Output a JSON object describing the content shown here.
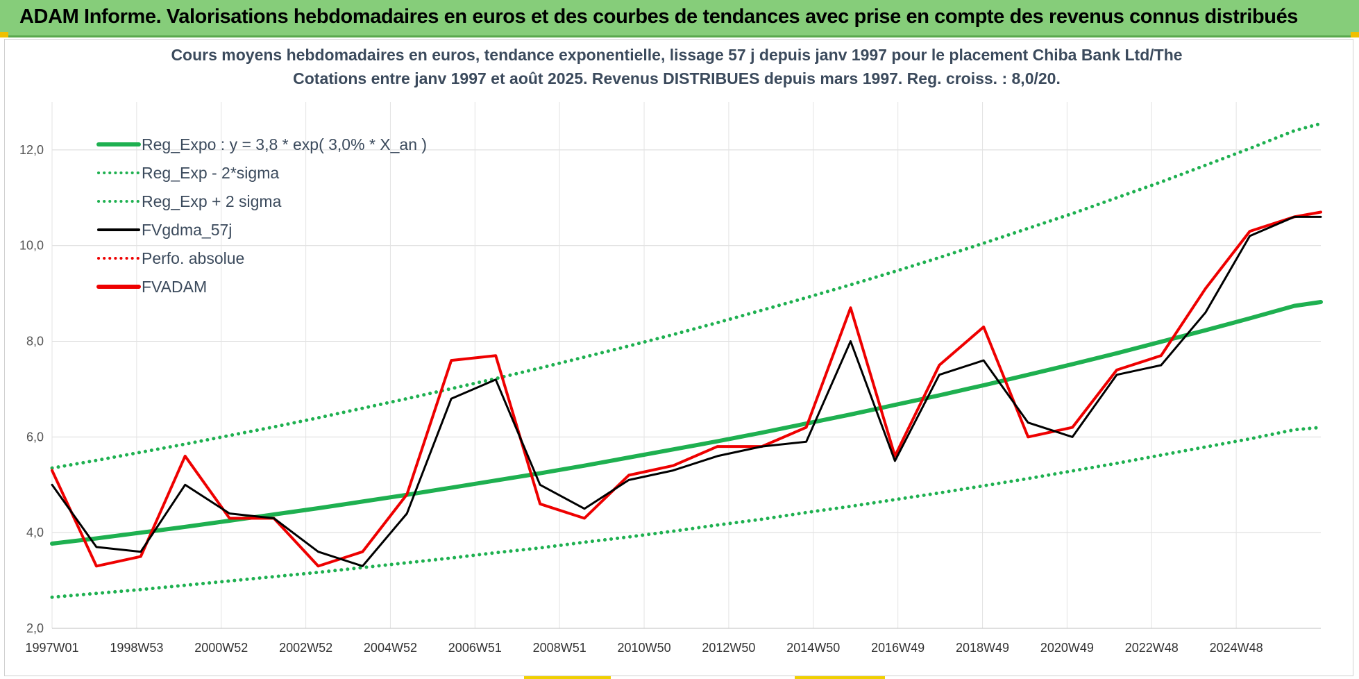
{
  "banner": {
    "title": "ADAM Informe. Valorisations hebdomadaires en euros et des courbes de tendances avec prise en compte des revenus connus distribués"
  },
  "colors": {
    "banner_bg": "#86cd7a",
    "green": "#1eb050",
    "red": "#ee0000",
    "black": "#000000"
  },
  "chart_data": {
    "type": "line",
    "title": "Cours moyens hebdomadaires en euros, tendance exponentielle, lissage 57 j depuis janv 1997 pour le placement Chiba Bank Ltd/The",
    "subtitle": "Cotations entre janv 1997 et août 2025.  Revenus DISTRIBUES depuis mars 1997. Reg. croiss. : 8,0/20.",
    "xlabel": "",
    "ylabel": "",
    "ylim": [
      2,
      13
    ],
    "y_ticks": [
      "2,0",
      "4,0",
      "6,0",
      "8,0",
      "10,0",
      "12,0"
    ],
    "x_ticks": [
      "1997W01",
      "1998W53",
      "2000W52",
      "2002W52",
      "2004W52",
      "2006W51",
      "2008W51",
      "2010W50",
      "2012W50",
      "2014W50",
      "2016W49",
      "2018W49",
      "2020W49",
      "2022W48",
      "2024W48"
    ],
    "x_years": [
      1997,
      1998,
      1999,
      2000,
      2001,
      2002,
      2003,
      2004,
      2005,
      2006,
      2007,
      2008,
      2009,
      2010,
      2011,
      2012,
      2013,
      2014,
      2015,
      2016,
      2017,
      2018,
      2019,
      2020,
      2021,
      2022,
      2023,
      2024,
      2025,
      2025.6
    ],
    "grid": true,
    "legend_position": "top-left",
    "series": [
      {
        "name": "Reg_Expo : y = 3,8 * exp( 3,0% *  X_an )",
        "style": "solid-thick",
        "color": "#1eb050",
        "values": [
          3.77,
          3.88,
          4.0,
          4.12,
          4.25,
          4.38,
          4.51,
          4.65,
          4.79,
          4.94,
          5.09,
          5.24,
          5.4,
          5.57,
          5.74,
          5.91,
          6.09,
          6.28,
          6.47,
          6.67,
          6.87,
          7.08,
          7.3,
          7.52,
          7.75,
          7.99,
          8.23,
          8.48,
          8.74,
          8.82
        ]
      },
      {
        "name": "Reg_Exp - 2*sigma",
        "style": "dotted",
        "color": "#1eb050",
        "values": [
          2.65,
          2.73,
          2.81,
          2.9,
          2.99,
          3.08,
          3.17,
          3.27,
          3.37,
          3.47,
          3.58,
          3.68,
          3.8,
          3.91,
          4.03,
          4.16,
          4.28,
          4.42,
          4.55,
          4.69,
          4.83,
          4.98,
          5.13,
          5.29,
          5.45,
          5.62,
          5.79,
          5.96,
          6.15,
          6.2
        ]
      },
      {
        "name": "Reg_Exp + 2 sigma",
        "style": "dotted",
        "color": "#1eb050",
        "values": [
          5.35,
          5.51,
          5.68,
          5.85,
          6.03,
          6.21,
          6.4,
          6.6,
          6.8,
          7.01,
          7.22,
          7.44,
          7.67,
          7.9,
          8.14,
          8.39,
          8.65,
          8.91,
          9.18,
          9.46,
          9.75,
          10.05,
          10.36,
          10.67,
          11.0,
          11.33,
          11.68,
          12.03,
          12.4,
          12.55
        ]
      },
      {
        "name": "FVgdma_57j",
        "style": "solid",
        "color": "#000000",
        "values": [
          5.0,
          3.7,
          3.6,
          5.0,
          4.4,
          4.3,
          3.6,
          3.3,
          4.4,
          6.8,
          7.2,
          5.0,
          4.5,
          5.1,
          5.3,
          5.6,
          5.8,
          5.9,
          8.0,
          5.5,
          7.3,
          7.6,
          6.3,
          6.0,
          7.3,
          7.5,
          8.6,
          10.2,
          10.6,
          10.6
        ]
      },
      {
        "name": "Perfo. absolue",
        "style": "dotted",
        "color": "#ee0000",
        "values": []
      },
      {
        "name": "FVADAM",
        "style": "solid-thick",
        "color": "#ee0000",
        "values": [
          5.3,
          3.3,
          3.5,
          5.6,
          4.3,
          4.3,
          3.3,
          3.6,
          4.8,
          7.6,
          7.7,
          4.6,
          4.3,
          5.2,
          5.4,
          5.8,
          5.8,
          6.2,
          8.7,
          5.6,
          7.5,
          8.3,
          6.0,
          6.2,
          7.4,
          7.7,
          9.1,
          10.3,
          10.6,
          10.7
        ]
      }
    ]
  }
}
